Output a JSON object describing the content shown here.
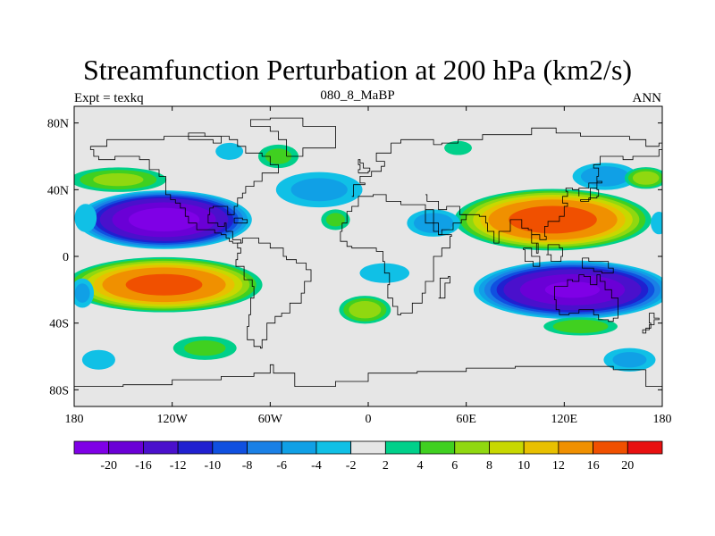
{
  "title": "Streamfunction Perturbation at 200 hPa (km2/s)",
  "subtitle_left": "Expt = texkq",
  "subtitle_center": "080_8_MaBP",
  "subtitle_right": "ANN",
  "map": {
    "projection": "cylindrical-equidistant",
    "lon_range": [
      -180,
      180
    ],
    "lat_range": [
      -90,
      90
    ],
    "land_value_color": "#e6e6e6",
    "coastline_color": "#000000",
    "lon_ticks": [
      {
        "value": -180,
        "label": "180"
      },
      {
        "value": -120,
        "label": "120W"
      },
      {
        "value": -60,
        "label": "60W"
      },
      {
        "value": 0,
        "label": "0"
      },
      {
        "value": 60,
        "label": "60E"
      },
      {
        "value": 120,
        "label": "120E"
      },
      {
        "value": 180,
        "label": "180"
      }
    ],
    "lat_ticks": [
      {
        "value": 80,
        "label": "80N"
      },
      {
        "value": 40,
        "label": "40N"
      },
      {
        "value": 0,
        "label": "0"
      },
      {
        "value": -40,
        "label": "40S"
      },
      {
        "value": -80,
        "label": "80S"
      }
    ]
  },
  "colorbar": {
    "colors": [
      "#7f00e6",
      "#6a00d6",
      "#4a10cc",
      "#2020d0",
      "#1050e0",
      "#1a80e6",
      "#10a0e6",
      "#10c0e6",
      "#e6e6e6",
      "#00d08a",
      "#40d020",
      "#90d810",
      "#c8d800",
      "#e8c000",
      "#f09000",
      "#f05000",
      "#e81010"
    ],
    "labels": [
      "-20",
      "-16",
      "-12",
      "-10",
      "-8",
      "-6",
      "-4",
      "-2",
      "2",
      "4",
      "6",
      "8",
      "10",
      "12",
      "16",
      "20"
    ]
  },
  "fields": [
    {
      "lon": -125,
      "lat": 22,
      "rx": 55,
      "ry": 18,
      "value": -22
    },
    {
      "lon": -125,
      "lat": -17,
      "rx": 62,
      "ry": 17,
      "value": 17
    },
    {
      "lon": 113,
      "lat": 22,
      "rx": 62,
      "ry": 19,
      "value": 18
    },
    {
      "lon": 125,
      "lat": -20,
      "rx": 62,
      "ry": 18,
      "value": -20
    },
    {
      "lon": -153,
      "lat": 46,
      "rx": 32,
      "ry": 8,
      "value": 6
    },
    {
      "lon": 40,
      "lat": 20,
      "rx": 18,
      "ry": 9,
      "value": -5
    },
    {
      "lon": -30,
      "lat": 40,
      "rx": 30,
      "ry": 12,
      "value": -4
    },
    {
      "lon": 10,
      "lat": -10,
      "rx": 18,
      "ry": 7,
      "value": -3
    },
    {
      "lon": -2,
      "lat": -32,
      "rx": 17,
      "ry": 9,
      "value": 7
    },
    {
      "lon": 145,
      "lat": 48,
      "rx": 22,
      "ry": 9,
      "value": -5
    },
    {
      "lon": 170,
      "lat": 47,
      "rx": 14,
      "ry": 7,
      "value": 7
    },
    {
      "lon": -55,
      "lat": 60,
      "rx": 14,
      "ry": 8,
      "value": 4
    },
    {
      "lon": -100,
      "lat": -55,
      "rx": 22,
      "ry": 8,
      "value": 4
    },
    {
      "lon": 130,
      "lat": -42,
      "rx": 25,
      "ry": 6,
      "value": 5
    },
    {
      "lon": -20,
      "lat": 22,
      "rx": 10,
      "ry": 7,
      "value": 4
    },
    {
      "lon": 55,
      "lat": 65,
      "rx": 10,
      "ry": 5,
      "value": 3
    },
    {
      "lon": 160,
      "lat": -62,
      "rx": 18,
      "ry": 8,
      "value": -4
    },
    {
      "lon": -165,
      "lat": -62,
      "rx": 12,
      "ry": 7,
      "value": -3
    },
    {
      "lon": -85,
      "lat": 63,
      "rx": 10,
      "ry": 6,
      "value": -3
    },
    {
      "lon": -175,
      "lat": -22,
      "rx": 8,
      "ry": 10,
      "value": -4
    },
    {
      "lon": -173,
      "lat": 23,
      "rx": 8,
      "ry": 10,
      "value": -3
    },
    {
      "lon": 178,
      "lat": 20,
      "rx": 6,
      "ry": 8,
      "value": -3
    }
  ],
  "coastlines": [
    [
      [
        -170,
        66
      ],
      [
        -160,
        70
      ],
      [
        -140,
        70
      ],
      [
        -125,
        72
      ],
      [
        -105,
        72
      ],
      [
        -85,
        70
      ],
      [
        -80,
        66
      ],
      [
        -75,
        62
      ],
      [
        -65,
        60
      ],
      [
        -60,
        55
      ],
      [
        -55,
        50
      ],
      [
        -65,
        45
      ],
      [
        -70,
        42
      ],
      [
        -75,
        38
      ],
      [
        -77,
        35
      ],
      [
        -80,
        30
      ],
      [
        -82,
        25
      ],
      [
        -86,
        30
      ],
      [
        -95,
        29
      ],
      [
        -97,
        25
      ],
      [
        -98,
        20
      ],
      [
        -92,
        18
      ],
      [
        -88,
        20
      ],
      [
        -87,
        15
      ],
      [
        -83,
        10
      ],
      [
        -78,
        8
      ],
      [
        -80,
        5
      ],
      [
        -78,
        2
      ],
      [
        -80,
        -2
      ],
      [
        -81,
        -6
      ],
      [
        -76,
        -14
      ],
      [
        -71,
        -18
      ],
      [
        -70,
        -25
      ],
      [
        -72,
        -35
      ],
      [
        -73,
        -42
      ],
      [
        -74,
        -50
      ],
      [
        -70,
        -54
      ],
      [
        -66,
        -55
      ],
      [
        -65,
        -50
      ],
      [
        -62,
        -40
      ],
      [
        -57,
        -36
      ],
      [
        -53,
        -34
      ],
      [
        -48,
        -28
      ],
      [
        -41,
        -22
      ],
      [
        -39,
        -15
      ],
      [
        -35,
        -8
      ],
      [
        -38,
        -4
      ],
      [
        -44,
        -2
      ],
      [
        -50,
        0
      ],
      [
        -52,
        5
      ],
      [
        -60,
        8
      ],
      [
        -67,
        11
      ],
      [
        -72,
        11
      ],
      [
        -77,
        8
      ]
    ],
    [
      [
        -77,
        8
      ],
      [
        -83,
        9
      ],
      [
        -85,
        11
      ],
      [
        -87,
        13
      ],
      [
        -90,
        14
      ],
      [
        -94,
        16
      ],
      [
        -105,
        20
      ],
      [
        -110,
        24
      ],
      [
        -112,
        29
      ],
      [
        -115,
        32
      ],
      [
        -118,
        34
      ],
      [
        -121,
        37
      ],
      [
        -124,
        42
      ],
      [
        -124,
        48
      ],
      [
        -128,
        52
      ],
      [
        -134,
        58
      ],
      [
        -140,
        60
      ],
      [
        -150,
        60
      ],
      [
        -155,
        58
      ],
      [
        -165,
        60
      ],
      [
        -168,
        64
      ],
      [
        -170,
        66
      ]
    ],
    [
      [
        -17,
        15
      ],
      [
        -16,
        20
      ],
      [
        -13,
        27
      ],
      [
        -10,
        30
      ],
      [
        -6,
        36
      ],
      [
        3,
        37
      ],
      [
        10,
        37
      ],
      [
        11,
        33
      ],
      [
        20,
        31
      ],
      [
        28,
        31
      ],
      [
        33,
        31
      ],
      [
        35,
        28
      ],
      [
        40,
        20
      ],
      [
        43,
        13
      ],
      [
        51,
        12
      ],
      [
        50,
        5
      ],
      [
        45,
        0
      ],
      [
        40,
        -5
      ],
      [
        40,
        -10
      ],
      [
        40,
        -15
      ],
      [
        35,
        -22
      ],
      [
        33,
        -28
      ],
      [
        27,
        -34
      ],
      [
        20,
        -35
      ],
      [
        18,
        -30
      ],
      [
        15,
        -25
      ],
      [
        12,
        -17
      ],
      [
        13,
        -10
      ],
      [
        10,
        -3
      ],
      [
        9,
        3
      ],
      [
        5,
        5
      ],
      [
        -5,
        5
      ],
      [
        -10,
        6
      ],
      [
        -13,
        9
      ],
      [
        -17,
        15
      ]
    ],
    [
      [
        -10,
        36
      ],
      [
        -9,
        43
      ],
      [
        -2,
        44
      ],
      [
        -5,
        48
      ],
      [
        2,
        51
      ],
      [
        8,
        54
      ],
      [
        10,
        57
      ],
      [
        5,
        62
      ],
      [
        14,
        68
      ],
      [
        20,
        70
      ],
      [
        30,
        70
      ],
      [
        40,
        67
      ],
      [
        45,
        68
      ],
      [
        55,
        70
      ],
      [
        70,
        73
      ],
      [
        80,
        73
      ],
      [
        100,
        77
      ],
      [
        115,
        74
      ],
      [
        130,
        72
      ],
      [
        140,
        72
      ],
      [
        160,
        70
      ],
      [
        170,
        66
      ],
      [
        178,
        68
      ],
      [
        180,
        66
      ]
    ],
    [
      [
        35,
        37
      ],
      [
        36,
        33
      ],
      [
        43,
        28
      ],
      [
        48,
        30
      ],
      [
        56,
        25
      ],
      [
        60,
        22
      ],
      [
        57,
        20
      ],
      [
        52,
        16
      ],
      [
        45,
        13
      ],
      [
        43,
        15
      ],
      [
        40,
        20
      ],
      [
        35,
        28
      ]
    ],
    [
      [
        57,
        25
      ],
      [
        62,
        25
      ],
      [
        68,
        24
      ],
      [
        72,
        20
      ],
      [
        73,
        15
      ],
      [
        77,
        8
      ],
      [
        80,
        12
      ],
      [
        80,
        15
      ],
      [
        87,
        22
      ],
      [
        92,
        22
      ],
      [
        94,
        17
      ],
      [
        98,
        16
      ],
      [
        100,
        8
      ],
      [
        104,
        2
      ],
      [
        103,
        8
      ],
      [
        100,
        13
      ],
      [
        105,
        10
      ],
      [
        109,
        12
      ],
      [
        108,
        18
      ],
      [
        110,
        21
      ],
      [
        117,
        24
      ],
      [
        120,
        30
      ],
      [
        122,
        32
      ],
      [
        119,
        36
      ],
      [
        122,
        39
      ],
      [
        121,
        41
      ],
      [
        125,
        40
      ],
      [
        129,
        36
      ],
      [
        129,
        41
      ],
      [
        135,
        44
      ],
      [
        140,
        48
      ],
      [
        141,
        53
      ],
      [
        138,
        55
      ],
      [
        142,
        60
      ],
      [
        150,
        60
      ],
      [
        156,
        58
      ],
      [
        162,
        60
      ],
      [
        170,
        60
      ],
      [
        178,
        64
      ],
      [
        180,
        66
      ]
    ],
    [
      [
        114,
        -22
      ],
      [
        114,
        -26
      ],
      [
        115,
        -32
      ],
      [
        117,
        -35
      ],
      [
        123,
        -34
      ],
      [
        129,
        -32
      ],
      [
        134,
        -32
      ],
      [
        138,
        -35
      ],
      [
        141,
        -38
      ],
      [
        147,
        -39
      ],
      [
        150,
        -37
      ],
      [
        153,
        -31
      ],
      [
        153,
        -25
      ],
      [
        149,
        -20
      ],
      [
        145,
        -15
      ],
      [
        142,
        -11
      ],
      [
        140,
        -17
      ],
      [
        136,
        -12
      ],
      [
        132,
        -11
      ],
      [
        129,
        -15
      ],
      [
        125,
        -14
      ],
      [
        122,
        -18
      ],
      [
        114,
        -22
      ]
    ],
    [
      [
        43,
        -25
      ],
      [
        44,
        -13
      ],
      [
        49,
        -12
      ],
      [
        50,
        -16
      ],
      [
        47,
        -25
      ],
      [
        43,
        -25
      ]
    ],
    [
      [
        -50,
        60
      ],
      [
        -45,
        60
      ],
      [
        -40,
        65
      ],
      [
        -20,
        70
      ],
      [
        -20,
        78
      ],
      [
        -40,
        83
      ],
      [
        -60,
        82
      ],
      [
        -72,
        78
      ],
      [
        -60,
        75
      ],
      [
        -55,
        70
      ],
      [
        -50,
        65
      ],
      [
        -50,
        60
      ]
    ],
    [
      [
        130,
        33
      ],
      [
        135,
        35
      ],
      [
        140,
        36
      ],
      [
        141,
        40
      ],
      [
        140,
        45
      ],
      [
        143,
        44
      ],
      [
        140,
        41
      ],
      [
        136,
        34
      ],
      [
        130,
        33
      ]
    ],
    [
      [
        95,
        5
      ],
      [
        100,
        0
      ],
      [
        105,
        -6
      ],
      [
        101,
        -3
      ],
      [
        96,
        4
      ],
      [
        95,
        5
      ]
    ],
    [
      [
        109,
        1
      ],
      [
        112,
        -3
      ],
      [
        118,
        0
      ],
      [
        119,
        5
      ],
      [
        117,
        7
      ],
      [
        110,
        1
      ]
    ],
    [
      [
        131,
        -1
      ],
      [
        135,
        -3
      ],
      [
        141,
        -3
      ],
      [
        147,
        -7
      ],
      [
        150,
        -10
      ],
      [
        143,
        -9
      ],
      [
        138,
        -7
      ],
      [
        131,
        -1
      ]
    ],
    [
      [
        -180,
        -78
      ],
      [
        -150,
        -77
      ],
      [
        -120,
        -74
      ],
      [
        -90,
        -72
      ],
      [
        -70,
        -70
      ],
      [
        -60,
        -65
      ],
      [
        -58,
        -70
      ],
      [
        -45,
        -78
      ],
      [
        -20,
        -75
      ],
      [
        0,
        -70
      ],
      [
        30,
        -69
      ],
      [
        60,
        -67
      ],
      [
        90,
        -66
      ],
      [
        120,
        -66
      ],
      [
        150,
        -68
      ],
      [
        170,
        -72
      ],
      [
        170,
        -78
      ],
      [
        180,
        -78
      ]
    ],
    [
      [
        172,
        -34
      ],
      [
        175,
        -37
      ],
      [
        178,
        -38
      ],
      [
        175,
        -41
      ],
      [
        172,
        -44
      ],
      [
        168,
        -46
      ],
      [
        170,
        -43
      ],
      [
        173,
        -40
      ],
      [
        172,
        -34
      ]
    ],
    [
      [
        -6,
        50
      ],
      [
        0,
        51
      ],
      [
        1,
        53
      ],
      [
        -3,
        56
      ],
      [
        -5,
        58
      ],
      [
        -6,
        55
      ],
      [
        -5,
        52
      ],
      [
        -6,
        50
      ]
    ],
    [
      [
        -82,
        23
      ],
      [
        -77,
        22
      ],
      [
        -74,
        20
      ],
      [
        -78,
        20
      ],
      [
        -82,
        23
      ]
    ],
    [
      [
        -110,
        70
      ],
      [
        -95,
        68
      ],
      [
        -90,
        72
      ],
      [
        -100,
        74
      ],
      [
        -110,
        70
      ]
    ]
  ]
}
